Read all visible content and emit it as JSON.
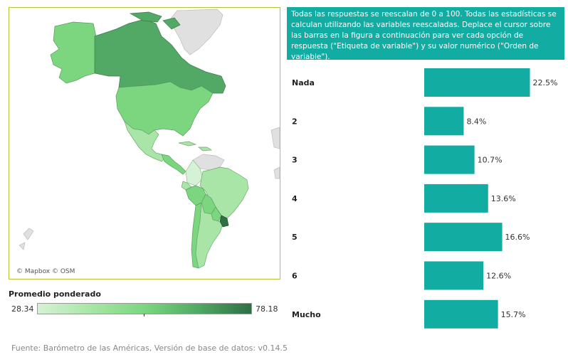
{
  "map": {
    "credit": "© Mapbox © OSM"
  },
  "legend": {
    "title": "Promedio ponderado",
    "min": "28.34",
    "max": "78.18",
    "colors": [
      "#d6f2d6",
      "#a8e5a6",
      "#7bd67f",
      "#52a965",
      "#2f6f45"
    ]
  },
  "note": {
    "text": "Todas las respuestas se reescalan de 0 a 100. Todas las estadísticas se calculan utilizando las variables reescaladas. Deplace el cursor sobre las barras en la figura a continuación para ver cada opción de respuesta (\"Etiqueta de variable\") y su valor numérico (\"Orden de variable\")."
  },
  "chart_data": {
    "type": "bar",
    "orientation": "horizontal",
    "categories": [
      "Nada",
      "2",
      "3",
      "4",
      "5",
      "6",
      "Mucho"
    ],
    "values": [
      22.5,
      8.4,
      10.7,
      13.6,
      16.6,
      12.6,
      15.7
    ],
    "value_labels": [
      "22.5%",
      "8.4%",
      "10.7%",
      "13.6%",
      "16.6%",
      "12.6%",
      "15.7%"
    ],
    "xlim": [
      0,
      100
    ],
    "color": "#12aca2",
    "grid": false
  },
  "footer": {
    "source": "Fuente: Barómetro de las Américas, Versión de base de datos: v0.14.5"
  }
}
